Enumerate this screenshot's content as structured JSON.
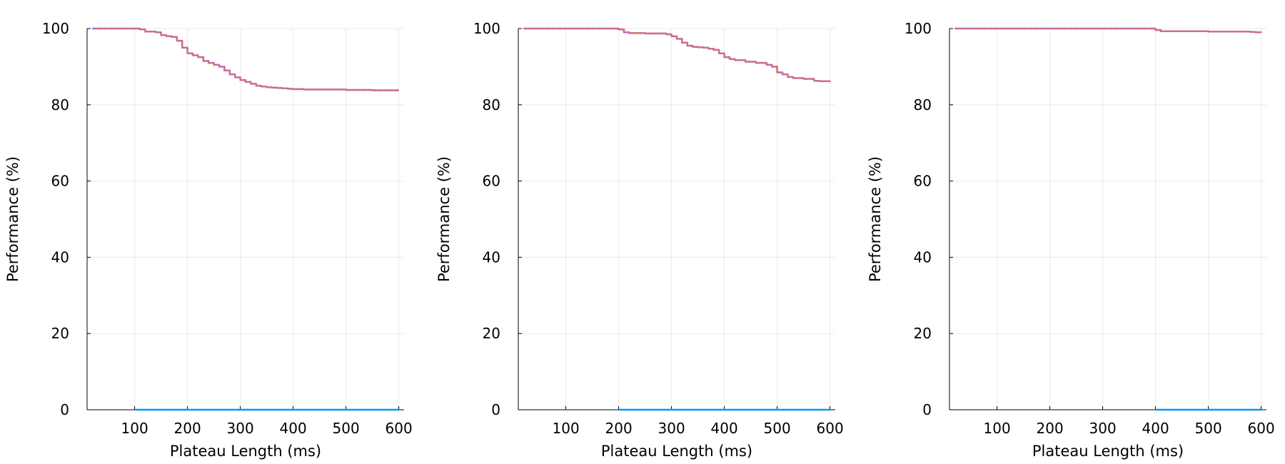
{
  "chart_data": [
    {
      "type": "line",
      "xlabel": "Plateau Length (ms)",
      "ylabel": "Performance (%)",
      "xlim": [
        10,
        610
      ],
      "ylim": [
        0,
        100
      ],
      "xticks": [
        100,
        200,
        300,
        400,
        500,
        600
      ],
      "yticks": [
        0,
        20,
        40,
        60,
        80,
        100
      ],
      "grid": true,
      "legend": "none",
      "series": [
        {
          "color": "#e26f46",
          "x": [
            20,
            100,
            110,
            120,
            130,
            140,
            150,
            160,
            170,
            180,
            190,
            200,
            210,
            220,
            230,
            240,
            250,
            260,
            270,
            280,
            290,
            300,
            310,
            320,
            330,
            340,
            350,
            360,
            370,
            380,
            390,
            400,
            420,
            450,
            500,
            550,
            600
          ],
          "y": [
            100,
            100,
            99.8,
            99.2,
            99.2,
            99,
            98.3,
            98,
            97.8,
            96.8,
            95,
            93.5,
            93,
            92.5,
            91.5,
            91,
            90.5,
            90,
            89,
            88,
            87.2,
            86.5,
            86,
            85.5,
            85,
            84.8,
            84.6,
            84.5,
            84.4,
            84.3,
            84.2,
            84.1,
            84,
            84,
            83.9,
            83.8,
            83.8
          ]
        },
        {
          "color": "#009af9",
          "x": [
            100,
            600
          ],
          "y": [
            0,
            0
          ]
        }
      ]
    },
    {
      "type": "line",
      "xlabel": "Plateau Length (ms)",
      "ylabel": "Performance (%)",
      "xlim": [
        10,
        610
      ],
      "ylim": [
        0,
        100
      ],
      "xticks": [
        100,
        200,
        300,
        400,
        500,
        600
      ],
      "yticks": [
        0,
        20,
        40,
        60,
        80,
        100
      ],
      "grid": true,
      "legend": "none",
      "series": [
        {
          "color": "#e26f46",
          "x": [
            20,
            190,
            200,
            210,
            220,
            250,
            280,
            290,
            300,
            310,
            320,
            330,
            340,
            350,
            360,
            370,
            380,
            390,
            400,
            410,
            420,
            440,
            460,
            480,
            490,
            500,
            510,
            520,
            530,
            550,
            570,
            580,
            600
          ],
          "y": [
            100,
            100,
            99.8,
            99,
            98.8,
            98.7,
            98.7,
            98.5,
            98,
            97.3,
            96.3,
            95.5,
            95.2,
            95.1,
            95,
            94.7,
            94.4,
            93.5,
            92.5,
            92,
            91.7,
            91.3,
            91,
            90.5,
            90,
            88.5,
            88,
            87.3,
            87,
            86.8,
            86.3,
            86.2,
            86
          ]
        },
        {
          "color": "#009af9",
          "x": [
            200,
            600
          ],
          "y": [
            0,
            0
          ]
        }
      ]
    },
    {
      "type": "line",
      "xlabel": "Plateau Length (ms)",
      "ylabel": "Performance (%)",
      "xlim": [
        10,
        610
      ],
      "ylim": [
        0,
        100
      ],
      "xticks": [
        100,
        200,
        300,
        400,
        500,
        600
      ],
      "yticks": [
        0,
        20,
        40,
        60,
        80,
        100
      ],
      "grid": true,
      "legend": "none",
      "series": [
        {
          "color": "#e26f46",
          "x": [
            20,
            390,
            400,
            410,
            450,
            500,
            550,
            580,
            590,
            600
          ],
          "y": [
            100,
            100,
            99.6,
            99.3,
            99.3,
            99.2,
            99.2,
            99.1,
            99,
            98.9
          ]
        },
        {
          "color": "#009af9",
          "x": [
            400,
            600
          ],
          "y": [
            0,
            0
          ]
        }
      ]
    }
  ]
}
